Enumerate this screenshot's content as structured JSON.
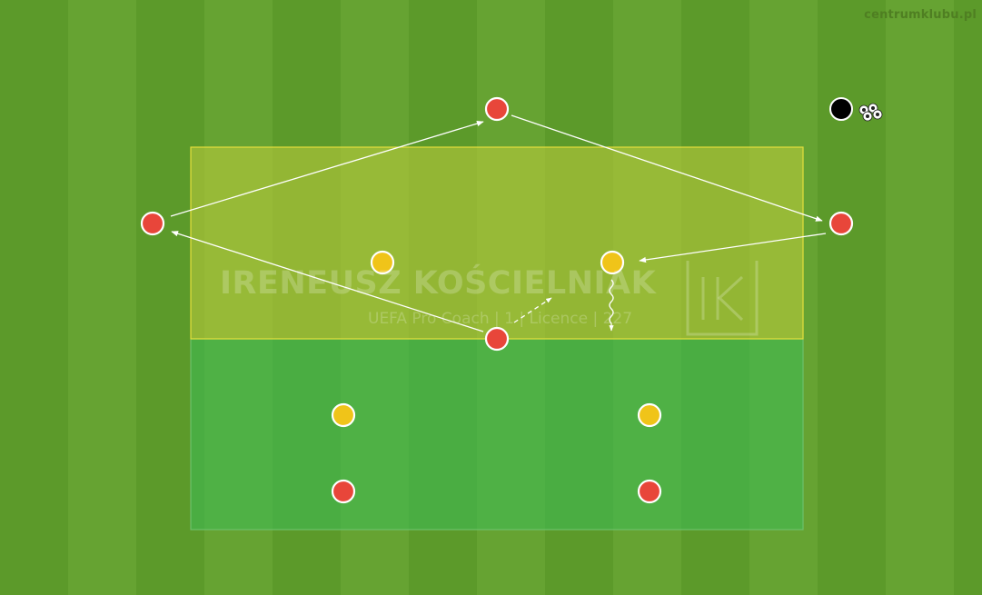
{
  "site": "centrumklubu.pl",
  "watermark": {
    "name": "IRENEUSZ KOŚCIELNIAK",
    "subtitle": "UEFA Pro Coach | 1 | Licence | 227",
    "logo": "IK"
  },
  "colors": {
    "grass_dark": "#5c9a2a",
    "grass_light": "#66a332",
    "zone_top_fill": "#b4c83a",
    "zone_top_stroke": "#e3de3c",
    "zone_bottom_fill": "#3cbe55",
    "zone_bottom_stroke": "#6cc16a",
    "player_red": "#e8463a",
    "player_yellow": "#f0c419",
    "coach": "#000000",
    "arrow": "#ffffff"
  },
  "legend": {
    "players": [
      {
        "team": "red",
        "role": "outside-left"
      },
      {
        "team": "red",
        "role": "outside-top"
      },
      {
        "team": "red",
        "role": "outside-right"
      },
      {
        "team": "red",
        "role": "centre-bottom"
      },
      {
        "team": "yellow",
        "role": "top-zone-left"
      },
      {
        "team": "yellow",
        "role": "top-zone-right"
      },
      {
        "team": "yellow",
        "role": "bottom-zone-left"
      },
      {
        "team": "yellow",
        "role": "bottom-zone-right"
      },
      {
        "team": "red",
        "role": "bottom-zone-left"
      },
      {
        "team": "red",
        "role": "bottom-zone-right"
      }
    ],
    "equipment": [
      "coach-marker",
      "balls-icon"
    ],
    "movements": [
      "pass",
      "pass",
      "pass",
      "pass",
      "run",
      "dribble"
    ]
  }
}
